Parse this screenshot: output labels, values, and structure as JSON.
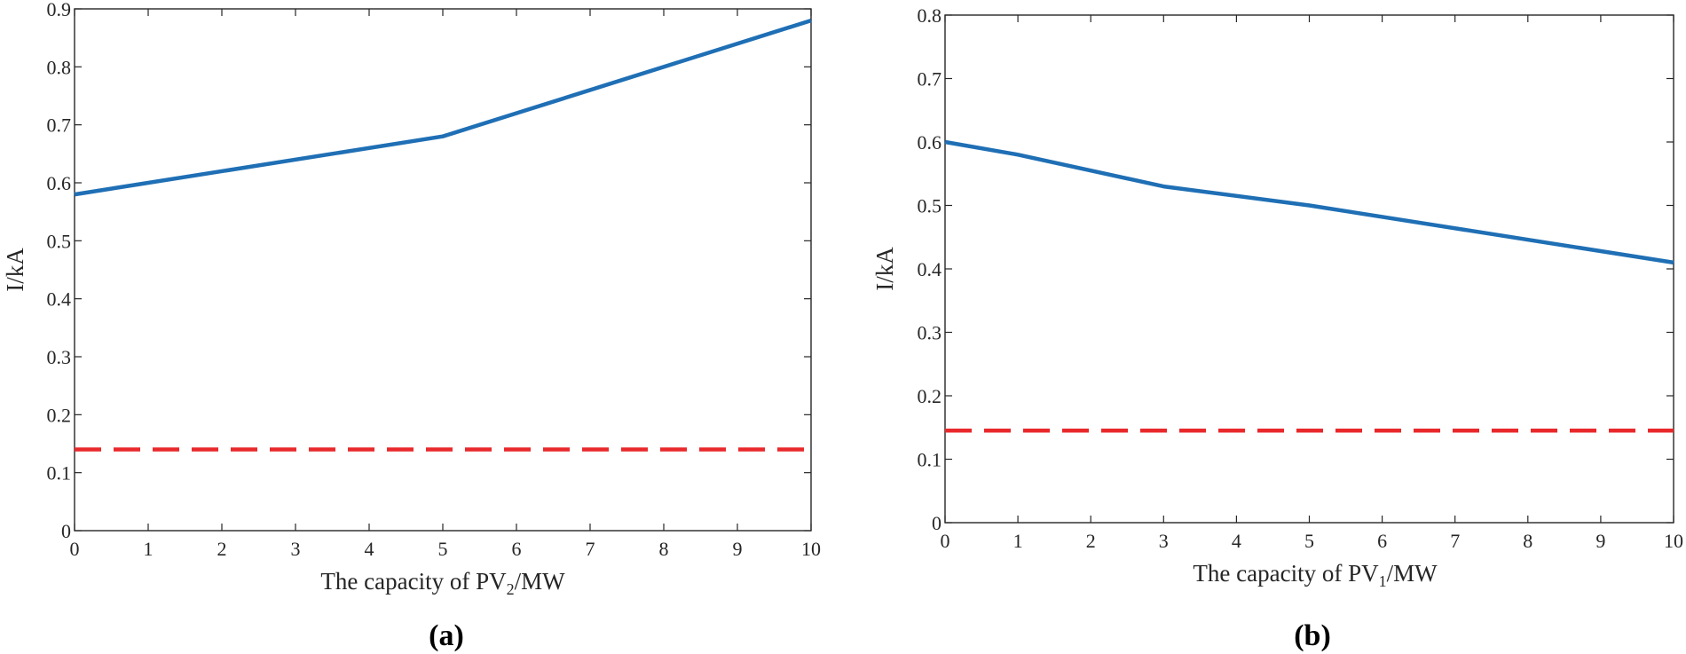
{
  "chart_data": [
    {
      "type": "line",
      "panel_label": "(a)",
      "xlabel_prefix": "The capacity of PV",
      "xlabel_subscript": "2",
      "xlabel_suffix": "/MW",
      "ylabel": "I/kA",
      "xlim": [
        0,
        10
      ],
      "ylim": [
        0,
        0.9
      ],
      "x_ticks": [
        "0",
        "1",
        "2",
        "3",
        "4",
        "5",
        "6",
        "7",
        "8",
        "9",
        "10"
      ],
      "y_ticks": [
        "0",
        "0.1",
        "0.2",
        "0.3",
        "0.4",
        "0.5",
        "0.6",
        "0.7",
        "0.8",
        "0.9"
      ],
      "series": [
        {
          "name": "solid",
          "style": "solid",
          "color": "#1f6fb5",
          "x": [
            0,
            5,
            10
          ],
          "y": [
            0.58,
            0.68,
            0.88
          ]
        },
        {
          "name": "dashed",
          "style": "dashed",
          "color": "#e8282b",
          "x": [
            0,
            10
          ],
          "y": [
            0.14,
            0.14
          ]
        }
      ]
    },
    {
      "type": "line",
      "panel_label": "(b)",
      "xlabel_prefix": "The capacity of PV",
      "xlabel_subscript": "1",
      "xlabel_suffix": "/MW",
      "ylabel": "I/kA",
      "xlim": [
        0,
        10
      ],
      "ylim": [
        0,
        0.8
      ],
      "x_ticks": [
        "0",
        "1",
        "2",
        "3",
        "4",
        "5",
        "6",
        "7",
        "8",
        "9",
        "10"
      ],
      "y_ticks": [
        "0",
        "0.1",
        "0.2",
        "0.3",
        "0.4",
        "0.5",
        "0.6",
        "0.7",
        "0.8"
      ],
      "series": [
        {
          "name": "solid",
          "style": "solid",
          "color": "#1f6fb5",
          "x": [
            0,
            1,
            3,
            5,
            10
          ],
          "y": [
            0.6,
            0.58,
            0.53,
            0.5,
            0.41
          ]
        },
        {
          "name": "dashed",
          "style": "dashed",
          "color": "#e8282b",
          "x": [
            0,
            10
          ],
          "y": [
            0.145,
            0.145
          ]
        }
      ]
    }
  ]
}
